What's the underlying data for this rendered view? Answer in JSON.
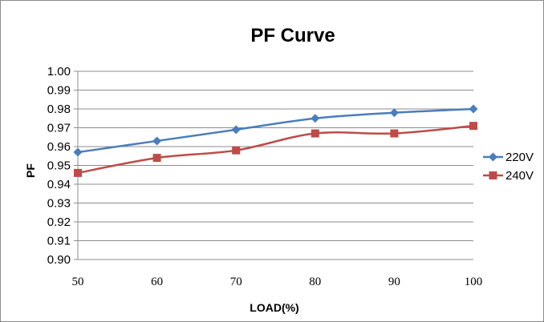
{
  "chart_data": {
    "type": "line",
    "title": "PF Curve",
    "xlabel": "LOAD(%)",
    "ylabel": "PF",
    "categories": [
      "50",
      "60",
      "70",
      "80",
      "90",
      "100"
    ],
    "x": [
      50,
      60,
      70,
      80,
      90,
      100
    ],
    "ylim": [
      0.9,
      1.0
    ],
    "yticks": [
      "0.90",
      "0.91",
      "0.92",
      "0.93",
      "0.94",
      "0.95",
      "0.96",
      "0.97",
      "0.98",
      "0.99",
      "1.00"
    ],
    "grid": true,
    "legend": "right",
    "series": [
      {
        "name": "220V",
        "values": [
          0.957,
          0.963,
          0.969,
          0.975,
          0.978,
          0.98
        ],
        "color": "#4a7ebb",
        "marker": "diamond"
      },
      {
        "name": "240V",
        "values": [
          0.946,
          0.954,
          0.958,
          0.967,
          0.967,
          0.971
        ],
        "color": "#be4b48",
        "marker": "square"
      }
    ]
  }
}
